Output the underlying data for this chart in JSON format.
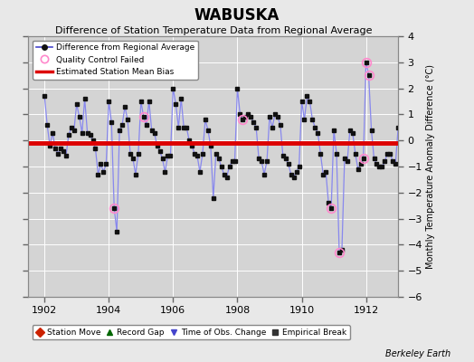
{
  "title": "WABUSKA",
  "subtitle": "Difference of Station Temperature Data from Regional Average",
  "ylabel_right": "Monthly Temperature Anomaly Difference (°C)",
  "credit": "Berkeley Earth",
  "xlim": [
    1901.5,
    1913.0
  ],
  "ylim": [
    -6,
    4
  ],
  "yticks": [
    -6,
    -5,
    -4,
    -3,
    -2,
    -1,
    0,
    1,
    2,
    3,
    4
  ],
  "xticks": [
    1902,
    1904,
    1906,
    1908,
    1910,
    1912
  ],
  "bias_level": -0.1,
  "background_color": "#e8e8e8",
  "plot_background_color": "#d4d4d4",
  "grid_color": "#ffffff",
  "line_color": "#4444cc",
  "line_color_fill": "#8888ee",
  "marker_color": "#111111",
  "bias_color": "#dd0000",
  "qc_color": "#ff88cc",
  "title_fontsize": 12,
  "subtitle_fontsize": 8,
  "tick_fontsize": 8,
  "ylabel_fontsize": 7,
  "time_values": [
    1902.0,
    1902.083,
    1902.167,
    1902.25,
    1902.333,
    1902.417,
    1902.5,
    1902.583,
    1902.667,
    1902.75,
    1902.833,
    1902.917,
    1903.0,
    1903.083,
    1903.167,
    1903.25,
    1903.333,
    1903.417,
    1903.5,
    1903.583,
    1903.667,
    1903.75,
    1903.833,
    1903.917,
    1904.0,
    1904.083,
    1904.167,
    1904.25,
    1904.333,
    1904.417,
    1904.5,
    1904.583,
    1904.667,
    1904.75,
    1904.833,
    1904.917,
    1905.0,
    1905.083,
    1905.167,
    1905.25,
    1905.333,
    1905.417,
    1905.5,
    1905.583,
    1905.667,
    1905.75,
    1905.833,
    1905.917,
    1906.0,
    1906.083,
    1906.167,
    1906.25,
    1906.333,
    1906.417,
    1906.5,
    1906.583,
    1906.667,
    1906.75,
    1906.833,
    1906.917,
    1907.0,
    1907.083,
    1907.167,
    1907.25,
    1907.333,
    1907.417,
    1907.5,
    1907.583,
    1907.667,
    1907.75,
    1907.833,
    1907.917,
    1908.0,
    1908.083,
    1908.167,
    1908.25,
    1908.333,
    1908.417,
    1908.5,
    1908.583,
    1908.667,
    1908.75,
    1908.833,
    1908.917,
    1909.0,
    1909.083,
    1909.167,
    1909.25,
    1909.333,
    1909.417,
    1909.5,
    1909.583,
    1909.667,
    1909.75,
    1909.833,
    1909.917,
    1910.0,
    1910.083,
    1910.167,
    1910.25,
    1910.333,
    1910.417,
    1910.5,
    1910.583,
    1910.667,
    1910.75,
    1910.833,
    1910.917,
    1911.0,
    1911.083,
    1911.167,
    1911.25,
    1911.333,
    1911.417,
    1911.5,
    1911.583,
    1911.667,
    1911.75,
    1911.833,
    1911.917,
    1912.0,
    1912.083,
    1912.167,
    1912.25,
    1912.333,
    1912.417,
    1912.5,
    1912.583,
    1912.667,
    1912.75,
    1912.833,
    1912.917,
    1913.0
  ],
  "data_values": [
    1.7,
    0.6,
    -0.2,
    0.3,
    -0.3,
    -0.5,
    -0.3,
    -0.4,
    -0.6,
    0.2,
    0.5,
    0.4,
    1.4,
    0.9,
    0.3,
    1.6,
    0.3,
    0.2,
    0.0,
    -0.3,
    -1.3,
    -0.9,
    -1.2,
    -0.9,
    1.5,
    0.7,
    -2.6,
    -3.5,
    0.4,
    0.6,
    1.3,
    0.8,
    -0.5,
    -0.7,
    -1.3,
    -0.5,
    1.5,
    0.9,
    0.6,
    1.5,
    0.4,
    0.3,
    -0.2,
    -0.4,
    -0.7,
    -1.2,
    -0.6,
    -0.6,
    2.0,
    1.4,
    0.5,
    1.6,
    0.5,
    0.5,
    0.0,
    -0.2,
    -0.5,
    -0.6,
    -1.2,
    -0.5,
    0.8,
    0.4,
    -0.2,
    -2.2,
    -0.5,
    -0.7,
    -1.0,
    -1.3,
    -1.4,
    -1.0,
    -0.8,
    -0.8,
    2.0,
    1.0,
    0.8,
    0.9,
    1.0,
    0.9,
    0.7,
    0.5,
    -0.7,
    -0.8,
    -1.3,
    -0.8,
    0.9,
    0.5,
    1.0,
    0.9,
    0.6,
    -0.6,
    -0.7,
    -0.9,
    -1.3,
    -1.4,
    -1.2,
    -1.0,
    1.5,
    0.8,
    1.7,
    1.5,
    0.8,
    0.5,
    0.3,
    -0.5,
    -1.3,
    -1.2,
    -2.4,
    -2.6,
    0.4,
    -0.5,
    -4.3,
    -4.2,
    -0.7,
    -0.8,
    0.4,
    0.3,
    -0.5,
    -1.1,
    -0.9,
    -0.7,
    3.0,
    2.5,
    0.4,
    -0.7,
    -0.9,
    -1.0,
    -1.0,
    -0.8,
    -0.5,
    -0.5,
    -0.8,
    -0.9,
    0.5
  ],
  "qc_failed_indices": [
    26,
    37,
    74,
    107,
    110,
    119,
    120,
    121
  ],
  "legend_labels": [
    "Difference from Regional Average",
    "Quality Control Failed",
    "Estimated Station Mean Bias"
  ],
  "bottom_legend_labels": [
    "Station Move",
    "Record Gap",
    "Time of Obs. Change",
    "Empirical Break"
  ]
}
